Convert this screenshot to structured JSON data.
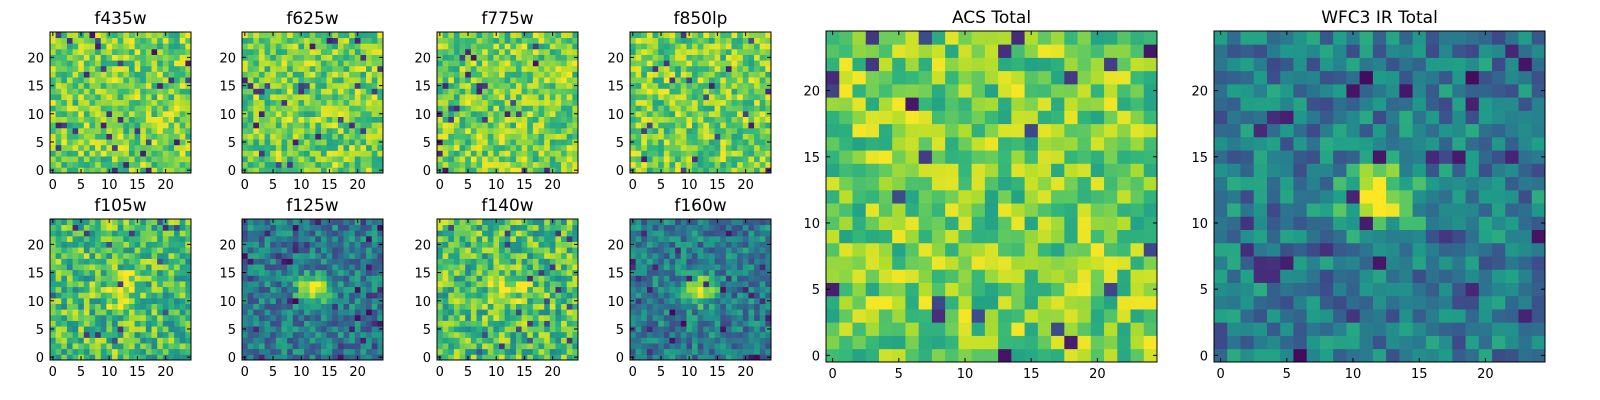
{
  "chart_data": [
    {
      "type": "heatmap",
      "title": "f435w",
      "grid": false,
      "colormap": "viridis",
      "style": "noisy",
      "xlim": [
        -0.5,
        24.5
      ],
      "ylim": [
        -0.5,
        24.5
      ],
      "xticks": [
        0,
        5,
        10,
        15,
        20
      ],
      "yticks": [
        0,
        5,
        10,
        15,
        20
      ],
      "source_center": null,
      "seed": 11
    },
    {
      "type": "heatmap",
      "title": "f625w",
      "grid": false,
      "colormap": "viridis",
      "style": "noisy",
      "xlim": [
        -0.5,
        24.5
      ],
      "ylim": [
        -0.5,
        24.5
      ],
      "xticks": [
        0,
        5,
        10,
        15,
        20
      ],
      "yticks": [
        0,
        5,
        10,
        15,
        20
      ],
      "source_center": null,
      "seed": 23
    },
    {
      "type": "heatmap",
      "title": "f775w",
      "grid": false,
      "colormap": "viridis",
      "style": "noisy",
      "xlim": [
        -0.5,
        24.5
      ],
      "ylim": [
        -0.5,
        24.5
      ],
      "xticks": [
        0,
        5,
        10,
        15,
        20
      ],
      "yticks": [
        0,
        5,
        10,
        15,
        20
      ],
      "source_center": null,
      "seed": 37
    },
    {
      "type": "heatmap",
      "title": "f850lp",
      "grid": false,
      "colormap": "viridis",
      "style": "noisy",
      "xlim": [
        -0.5,
        24.5
      ],
      "ylim": [
        -0.5,
        24.5
      ],
      "xticks": [
        0,
        5,
        10,
        15,
        20
      ],
      "yticks": [
        0,
        5,
        10,
        15,
        20
      ],
      "source_center": null,
      "seed": 41
    },
    {
      "type": "heatmap",
      "title": "f105w",
      "grid": false,
      "colormap": "viridis",
      "style": "bright",
      "xlim": [
        -0.5,
        24.5
      ],
      "ylim": [
        -0.5,
        24.5
      ],
      "xticks": [
        0,
        5,
        10,
        15,
        20
      ],
      "yticks": [
        0,
        5,
        10,
        15,
        20
      ],
      "source_center": [
        12,
        12
      ],
      "seed": 53
    },
    {
      "type": "heatmap",
      "title": "f125w",
      "grid": false,
      "colormap": "viridis",
      "style": "source",
      "xlim": [
        -0.5,
        24.5
      ],
      "ylim": [
        -0.5,
        24.5
      ],
      "xticks": [
        0,
        5,
        10,
        15,
        20
      ],
      "yticks": [
        0,
        5,
        10,
        15,
        20
      ],
      "source_center": [
        12,
        12
      ],
      "seed": 67
    },
    {
      "type": "heatmap",
      "title": "f140w",
      "grid": false,
      "colormap": "viridis",
      "style": "bright",
      "xlim": [
        -0.5,
        24.5
      ],
      "ylim": [
        -0.5,
        24.5
      ],
      "xticks": [
        0,
        5,
        10,
        15,
        20
      ],
      "yticks": [
        0,
        5,
        10,
        15,
        20
      ],
      "source_center": [
        12,
        12
      ],
      "seed": 71
    },
    {
      "type": "heatmap",
      "title": "f160w",
      "grid": false,
      "colormap": "viridis",
      "style": "source",
      "xlim": [
        -0.5,
        24.5
      ],
      "ylim": [
        -0.5,
        24.5
      ],
      "xticks": [
        0,
        5,
        10,
        15,
        20
      ],
      "yticks": [
        0,
        5,
        10,
        15,
        20
      ],
      "source_center": [
        12,
        12
      ],
      "seed": 83
    },
    {
      "type": "heatmap",
      "title": "ACS Total",
      "grid": false,
      "colormap": "viridis",
      "style": "noisy",
      "xlim": [
        -0.5,
        24.5
      ],
      "ylim": [
        -0.5,
        24.5
      ],
      "xticks": [
        0,
        5,
        10,
        15,
        20
      ],
      "yticks": [
        0,
        5,
        10,
        15,
        20
      ],
      "source_center": null,
      "seed": 97
    },
    {
      "type": "heatmap",
      "title": "WFC3 IR Total",
      "grid": false,
      "colormap": "viridis",
      "style": "source",
      "xlim": [
        -0.5,
        24.5
      ],
      "ylim": [
        -0.5,
        24.5
      ],
      "xticks": [
        0,
        5,
        10,
        15,
        20
      ],
      "yticks": [
        0,
        5,
        10,
        15,
        20
      ],
      "source_center": [
        12,
        12
      ],
      "seed": 101
    }
  ],
  "colors": {
    "viridis_stops": [
      "#440154",
      "#482878",
      "#3e4989",
      "#31688e",
      "#26828e",
      "#1f9e89",
      "#35b779",
      "#6ece58",
      "#b5de2b",
      "#fde725"
    ],
    "axes": "#000000",
    "background": "#ffffff"
  }
}
